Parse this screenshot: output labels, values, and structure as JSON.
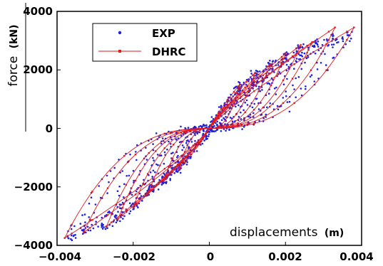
{
  "chart_data": {
    "type": "scatter",
    "xlim": [
      -0.004,
      0.004
    ],
    "ylim": [
      -4000,
      4000
    ],
    "x_ticks": [
      "−0.004",
      "−0.002",
      "0",
      "0.002",
      "0.004"
    ],
    "y_ticks": [
      "4000",
      "2000",
      "0",
      "−2000",
      "−4000"
    ],
    "xlabel": "displacements",
    "xlabel_unit": "(m)",
    "ylabel": "force",
    "ylabel_unit": "(kN)",
    "legend_position": "top-left",
    "series": [
      {
        "name": "EXP",
        "style": "markers",
        "color": "#1f1fe0",
        "cycles": [
          {
            "amp": 0.0008,
            "fpos": 1500,
            "fneg": -1400
          },
          {
            "amp": 0.0012,
            "fpos": 1900,
            "fneg": -1800
          },
          {
            "amp": 0.0016,
            "fpos": 2200,
            "fneg": -2200
          },
          {
            "amp": 0.002,
            "fpos": 2500,
            "fneg": -2700
          },
          {
            "amp": 0.0024,
            "fpos": 2800,
            "fneg": -3100
          },
          {
            "amp": 0.0028,
            "fpos": 3000,
            "fneg": -3400
          },
          {
            "amp": 0.0033,
            "fpos": 3150,
            "fneg": -3550
          },
          {
            "amp": 0.0037,
            "fpos": 3250,
            "fneg": -3750
          }
        ]
      },
      {
        "name": "DHRC",
        "style": "line",
        "color": "#e31a1c",
        "cycles": [
          {
            "amp": 0.0008,
            "fpos": 1500,
            "fneg": -1400
          },
          {
            "amp": 0.0012,
            "fpos": 1900,
            "fneg": -1800
          },
          {
            "amp": 0.0016,
            "fpos": 2200,
            "fneg": -2200
          },
          {
            "amp": 0.002,
            "fpos": 2550,
            "fneg": -2700
          },
          {
            "amp": 0.0024,
            "fpos": 2850,
            "fneg": -3100
          },
          {
            "amp": 0.0027,
            "fpos": 2950,
            "fneg": -3350
          },
          {
            "amp": 0.0033,
            "fpos": 3450,
            "fneg": -3550
          },
          {
            "amp": 0.0038,
            "fpos": 3450,
            "fneg": -3750
          }
        ]
      }
    ]
  }
}
